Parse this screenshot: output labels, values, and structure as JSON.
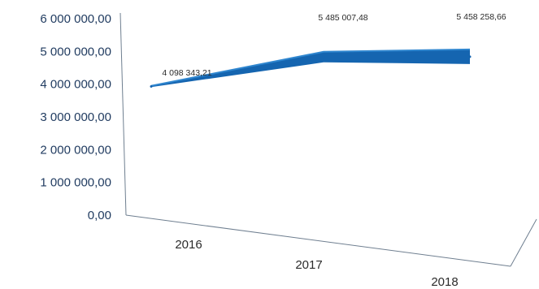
{
  "chart_data": {
    "type": "line",
    "style": "3d-ribbon",
    "categories": [
      "2016",
      "2017",
      "2018"
    ],
    "series": [
      {
        "values": [
          4098343.21,
          5485007.48,
          5458258.66
        ],
        "labels": [
          "4 098 343,21",
          "5 485 007,48",
          "5 458 258,66"
        ]
      }
    ],
    "y_ticks": [
      "0,00",
      "1 000 000,00",
      "2 000 000,00",
      "3 000 000,00",
      "4 000 000,00",
      "5 000 000,00",
      "6 000 000,00"
    ],
    "ylim": [
      0,
      6000000
    ],
    "title": "",
    "xlabel": "",
    "ylabel": "",
    "grid": false,
    "legend": "none",
    "colors": {
      "ribbon_top": "#2f86cf",
      "ribbon_side": "#1565b0",
      "axis_text": "#1f3a5f",
      "axis_line": "#6f7f90"
    }
  }
}
